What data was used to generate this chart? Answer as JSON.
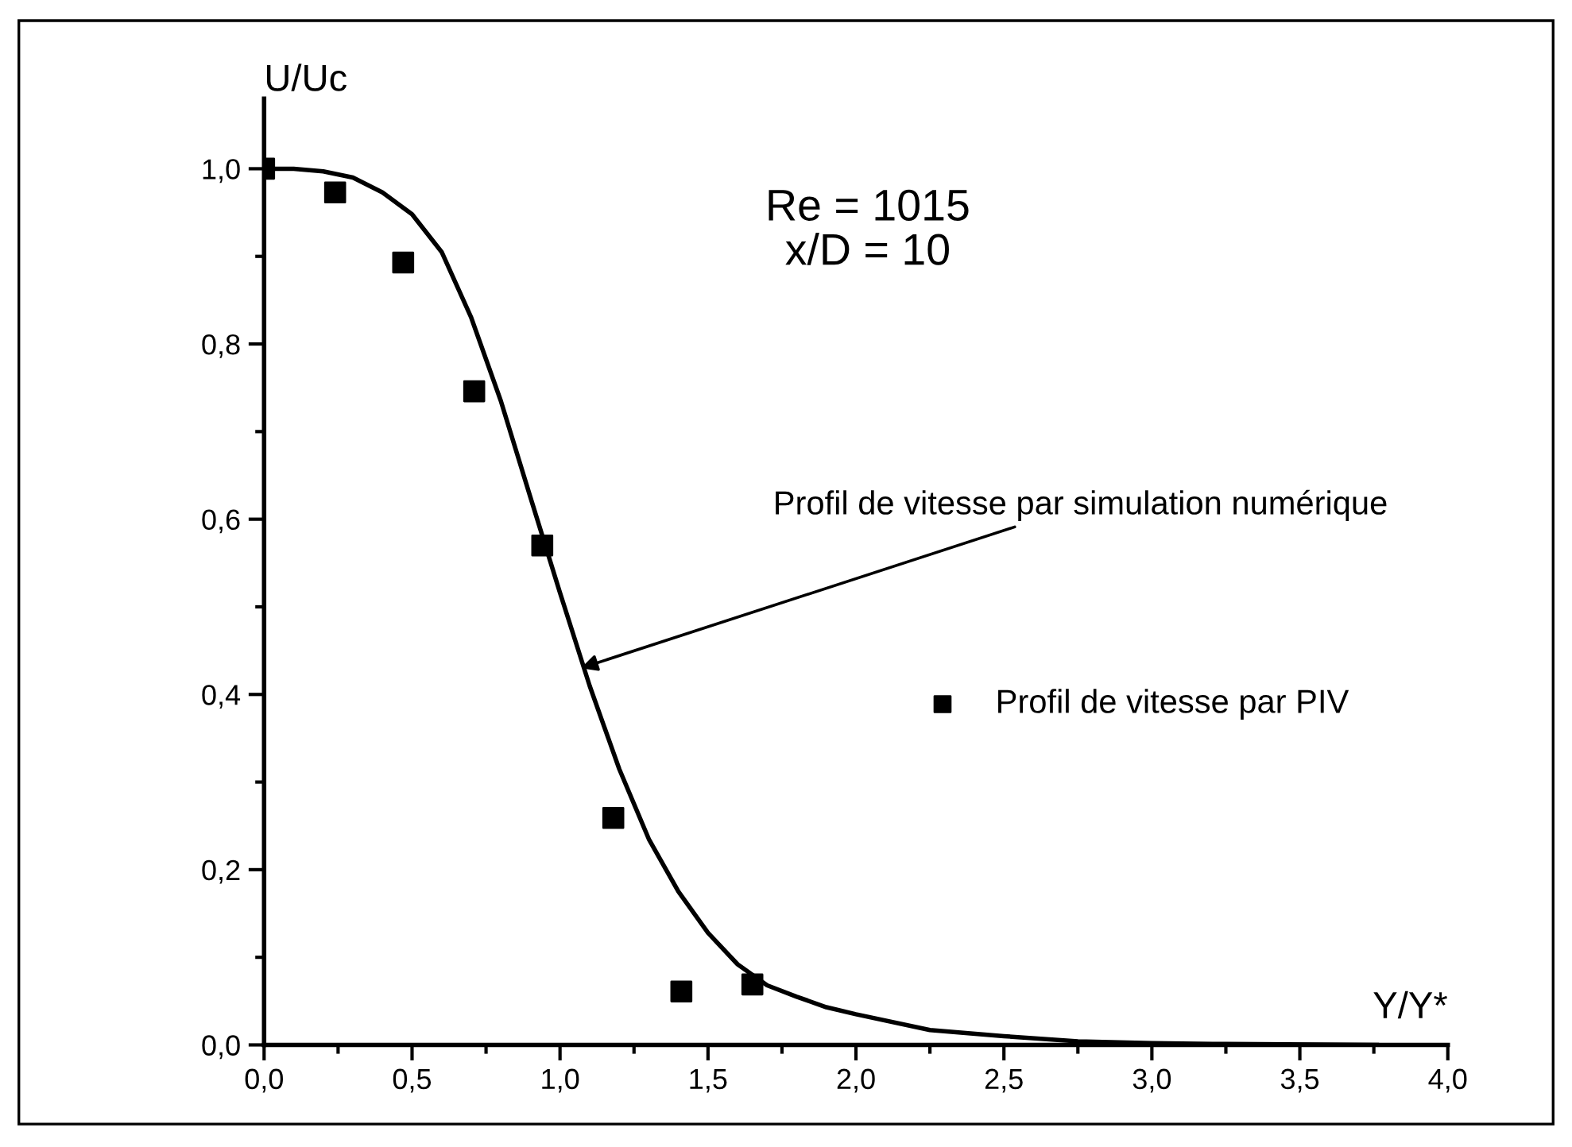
{
  "chart_data": {
    "type": "scatter",
    "xlabel": "Y/Y*",
    "ylabel": "U/Uc",
    "xlim": [
      0,
      4.0
    ],
    "ylim": [
      0,
      1.08
    ],
    "xticks": [
      {
        "value": 0,
        "label": "0,0"
      },
      {
        "value": 0.5,
        "label": "0,5"
      },
      {
        "value": 1.0,
        "label": "1,0"
      },
      {
        "value": 1.5,
        "label": "1,5"
      },
      {
        "value": 2.0,
        "label": "2,0"
      },
      {
        "value": 2.5,
        "label": "2,5"
      },
      {
        "value": 3.0,
        "label": "3,0"
      },
      {
        "value": 3.5,
        "label": "3,5"
      },
      {
        "value": 4.0,
        "label": "4,0"
      }
    ],
    "yticks": [
      {
        "value": 0,
        "label": "0,0"
      },
      {
        "value": 0.2,
        "label": "0,2"
      },
      {
        "value": 0.4,
        "label": "0,4"
      },
      {
        "value": 0.6,
        "label": "0,6"
      },
      {
        "value": 0.8,
        "label": "0,8"
      },
      {
        "value": 1.0,
        "label": "1,0"
      }
    ],
    "series": [
      {
        "type": "line",
        "color": "#000000",
        "x": [
          0,
          0.1,
          0.2,
          0.3,
          0.4,
          0.5,
          0.6,
          0.7,
          0.8,
          0.9,
          1.0,
          1.1,
          1.2,
          1.3,
          1.4,
          1.5,
          1.6,
          1.7,
          1.8,
          1.9,
          2.0,
          2.25,
          2.5,
          2.75,
          3.0,
          3.25,
          3.76
        ],
        "values": [
          1.0,
          1.0,
          0.997,
          0.99,
          0.973,
          0.948,
          0.905,
          0.83,
          0.735,
          0.625,
          0.516,
          0.41,
          0.315,
          0.235,
          0.175,
          0.128,
          0.092,
          0.068,
          0.055,
          0.043,
          0.035,
          0.017,
          0.01,
          0.004,
          0.002,
          0.001,
          0
        ]
      },
      {
        "name": "Profil de vitesse par PIV",
        "color": "#000000",
        "marker": "square",
        "x": [
          0,
          0.24,
          0.47,
          0.71,
          0.94,
          1.18,
          1.41,
          1.65
        ],
        "values": [
          1.0,
          0.973,
          0.893,
          0.746,
          0.57,
          0.259,
          0.061,
          0.069
        ]
      }
    ],
    "annotations": [
      "Re = 1015\nx/D = 10",
      {
        "text": "Profil de vitesse par simulation numérique",
        "x": 1.07,
        "y": 0.43
      }
    ],
    "legend": "right",
    "grid": false
  }
}
